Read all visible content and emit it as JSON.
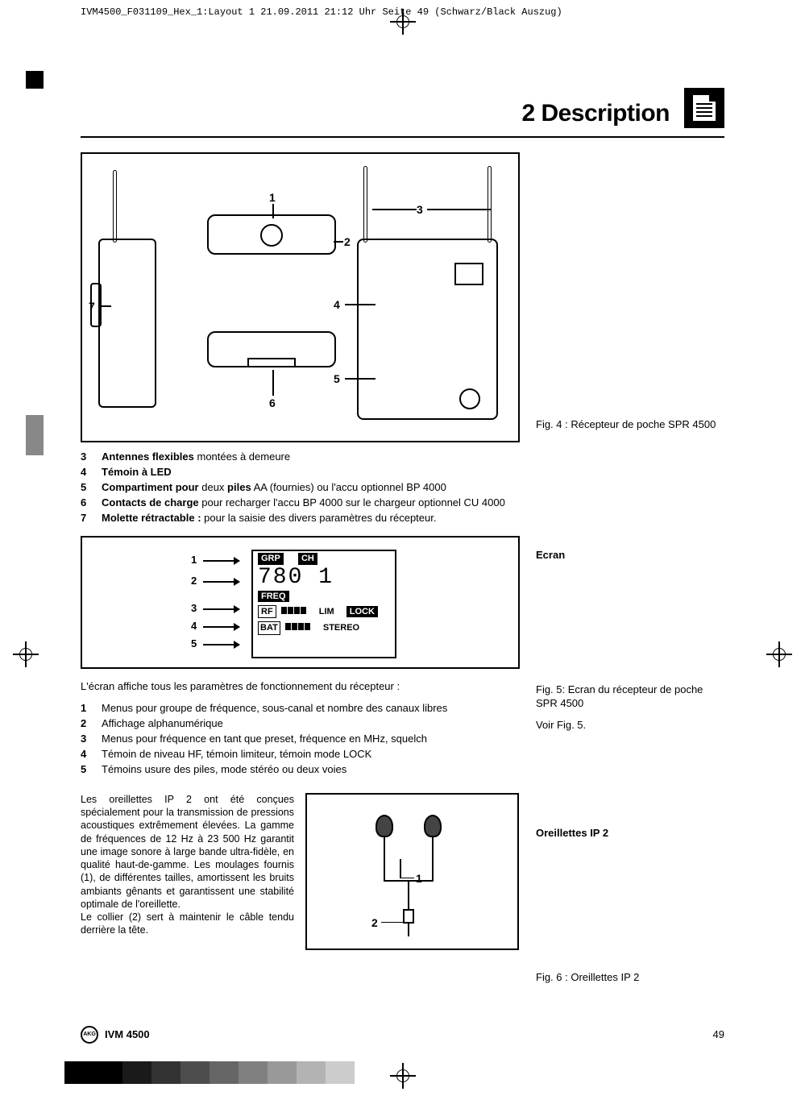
{
  "print_header": "IVM4500_F031109_Hex_1:Layout 1  21.09.2011  21:12 Uhr  Seite 49    (Schwarz/Black Auszug)",
  "section_title": "2 Description",
  "fig4": {
    "caption": "Fig. 4 : Récepteur de poche SPR 4500",
    "labels": {
      "n1": "1",
      "n2": "2",
      "n3": "3",
      "n4": "4",
      "n5": "5",
      "n6": "6",
      "n7": "7"
    }
  },
  "list4": [
    {
      "n": "3",
      "html": "<b>Antennes flexibles</b> montées à demeure"
    },
    {
      "n": "4",
      "html": "<b>Témoin à LED</b>"
    },
    {
      "n": "5",
      "html": "<b>Compartiment pour</b> deux <b>piles</b> AA (fournies) ou l'accu optionnel BP 4000"
    },
    {
      "n": "6",
      "html": "<b>Contacts de charge</b> pour recharger l'accu BP 4000 sur le chargeur optionnel CU 4000"
    },
    {
      "n": "7",
      "html": "<b>Molette rétractable :</b> pour la saisie des divers paramètres du récepteur."
    }
  ],
  "ecran_heading": "Ecran",
  "fig5": {
    "caption": "Fig. 5: Ecran du récepteur de poche SPR 4500",
    "screen": {
      "grp": "GRP",
      "ch": "CH",
      "big": "780 1",
      "freq": "FREQ",
      "rf": "RF",
      "lim": "LIM",
      "lock": "LOCK",
      "bat": "BAT",
      "stereo": "STEREO"
    },
    "ptr": {
      "n1": "1",
      "n2": "2",
      "n3": "3",
      "n4": "4",
      "n5": "5"
    }
  },
  "voir": "Voir Fig. 5.",
  "intro5": "L'écran affiche tous les paramètres de fonctionnement du récepteur :",
  "list5": [
    {
      "n": "1",
      "t": "Menus pour groupe de fréquence, sous-canal et nombre des canaux libres"
    },
    {
      "n": "2",
      "t": "Affichage alphanumérique"
    },
    {
      "n": "3",
      "t": "Menus pour fréquence en tant que preset, fréquence en MHz, squelch"
    },
    {
      "n": "4",
      "t": "Témoin de niveau HF, témoin limiteur, témoin mode LOCK"
    },
    {
      "n": "5",
      "t": "Témoins usure des piles, mode stéréo ou deux voies"
    }
  ],
  "oreil_heading": "Oreillettes IP 2",
  "oreil_text": "Les oreillettes IP 2 ont été conçues spécialement pour la transmission de pressions acoustiques extrêmement élevées. La gamme de fréquences de 12 Hz à 23 500 Hz garantit une image sonore à large bande ultra-fidèle, en qualité haut-de-gamme. Les moulages fournis (1), de différentes tailles, amortissent les bruits ambiants gênants et garantissent une stabilité optimale de l'oreillette.\nLe collier (2) sert à maintenir le câble tendu derrière la tête.",
  "fig6": {
    "caption": "Fig. 6 : Oreillettes IP 2",
    "n1": "1",
    "n2": "2"
  },
  "footer": {
    "product": "IVM 4500",
    "page": "49"
  },
  "colorbar": [
    "#000000",
    "#000000",
    "#1a1a1a",
    "#333333",
    "#4d4d4d",
    "#666666",
    "#808080",
    "#999999",
    "#b3b3b3",
    "#cccccc"
  ]
}
